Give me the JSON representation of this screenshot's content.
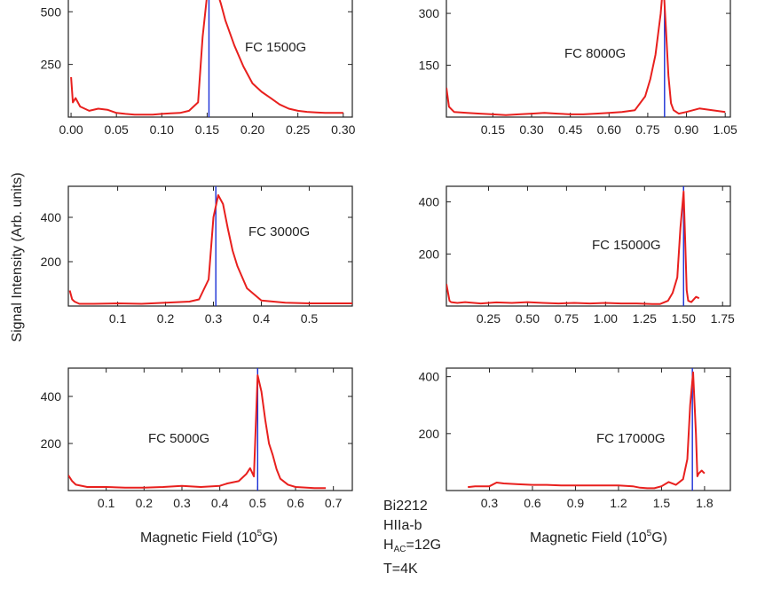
{
  "figure": {
    "ylabel": "Signal Intensity (Arb. units)",
    "xlabel_prefix": "Magnetic Field (10",
    "xlabel_sup": "5",
    "xlabel_suffix": "G)",
    "series_color": "#e8201e",
    "marker_color": "#1a2fd6"
  },
  "annotation": {
    "line1": "Bi2212",
    "line2": "HIIa-b",
    "line3_main": "H",
    "line3_sub": "AC",
    "line3_rest": "=12G",
    "line4": "T=4K"
  },
  "chart_data": [
    {
      "type": "line",
      "label": "FC 1500G",
      "xlim": [
        -0.003,
        0.31
      ],
      "ylim": [
        0,
        640
      ],
      "xticks": [
        "0.00",
        "0.05",
        "0.10",
        "0.15",
        "0.20",
        "0.25",
        "0.30"
      ],
      "yticks": [
        "250",
        "500"
      ],
      "marker_x": 0.152,
      "series": [
        {
          "x": [
            0.0,
            0.002,
            0.005,
            0.01,
            0.02,
            0.03,
            0.04,
            0.05,
            0.06,
            0.07,
            0.08,
            0.09,
            0.1,
            0.11,
            0.12,
            0.13,
            0.14,
            0.145,
            0.15,
            0.155,
            0.16,
            0.165,
            0.17,
            0.18,
            0.19,
            0.2,
            0.21,
            0.22,
            0.23,
            0.24,
            0.25,
            0.26,
            0.27,
            0.28,
            0.29,
            0.3
          ],
          "y": [
            190,
            70,
            90,
            50,
            30,
            40,
            35,
            20,
            15,
            12,
            12,
            12,
            15,
            18,
            20,
            30,
            70,
            380,
            580,
            590,
            610,
            540,
            460,
            340,
            240,
            160,
            120,
            90,
            60,
            40,
            30,
            25,
            22,
            20,
            20,
            20
          ]
        }
      ]
    },
    {
      "type": "line",
      "label": "FC 8000G",
      "xlim": [
        -0.03,
        1.07
      ],
      "ylim": [
        0,
        390
      ],
      "xticks": [
        "0.15",
        "0.30",
        "0.45",
        "0.60",
        "0.75",
        "0.90",
        "1.05"
      ],
      "yticks": [
        "150",
        "300"
      ],
      "marker_x": 0.815,
      "series": [
        {
          "x": [
            -0.03,
            -0.02,
            0.0,
            0.05,
            0.1,
            0.15,
            0.2,
            0.25,
            0.3,
            0.35,
            0.4,
            0.45,
            0.5,
            0.55,
            0.6,
            0.65,
            0.7,
            0.74,
            0.76,
            0.78,
            0.8,
            0.81,
            0.82,
            0.83,
            0.84,
            0.85,
            0.87,
            0.9,
            0.95,
            1.0,
            1.05
          ],
          "y": [
            85,
            30,
            15,
            12,
            10,
            8,
            6,
            8,
            10,
            12,
            10,
            8,
            8,
            10,
            12,
            15,
            20,
            60,
            110,
            180,
            300,
            390,
            260,
            120,
            40,
            20,
            10,
            15,
            25,
            20,
            15
          ]
        }
      ]
    },
    {
      "type": "line",
      "label": "FC 3000G",
      "xlim": [
        -0.003,
        0.59
      ],
      "ylim": [
        0,
        540
      ],
      "xticks": [
        "0.1",
        "0.2",
        "0.3",
        "0.4",
        "0.5"
      ],
      "yticks": [
        "200",
        "400"
      ],
      "marker_x": 0.305,
      "series": [
        {
          "x": [
            0.0,
            0.005,
            0.01,
            0.02,
            0.05,
            0.1,
            0.15,
            0.2,
            0.25,
            0.27,
            0.29,
            0.3,
            0.31,
            0.32,
            0.33,
            0.34,
            0.35,
            0.37,
            0.4,
            0.45,
            0.5,
            0.55,
            0.59
          ],
          "y": [
            70,
            30,
            20,
            10,
            10,
            12,
            10,
            15,
            20,
            30,
            120,
            400,
            500,
            460,
            350,
            250,
            180,
            80,
            25,
            15,
            12,
            12,
            12
          ]
        }
      ]
    },
    {
      "type": "line",
      "label": "FC 15000G",
      "xlim": [
        -0.02,
        1.8
      ],
      "ylim": [
        0,
        460
      ],
      "xticks": [
        "0.25",
        "0.50",
        "0.75",
        "1.00",
        "1.25",
        "1.50",
        "1.75"
      ],
      "yticks": [
        "200",
        "400"
      ],
      "marker_x": 1.5,
      "series": [
        {
          "x": [
            -0.02,
            0.0,
            0.01,
            0.05,
            0.1,
            0.2,
            0.3,
            0.4,
            0.5,
            0.6,
            0.7,
            0.8,
            0.9,
            1.0,
            1.1,
            1.2,
            1.3,
            1.35,
            1.4,
            1.43,
            1.46,
            1.48,
            1.5,
            1.51,
            1.52,
            1.53,
            1.55,
            1.58,
            1.6
          ],
          "y": [
            85,
            20,
            15,
            12,
            15,
            10,
            14,
            12,
            15,
            12,
            10,
            12,
            10,
            12,
            10,
            10,
            8,
            8,
            20,
            50,
            110,
            300,
            440,
            260,
            60,
            20,
            15,
            35,
            30
          ]
        }
      ]
    },
    {
      "type": "line",
      "label": "FC 5000G",
      "xlim": [
        0.0,
        0.75
      ],
      "ylim": [
        0,
        520
      ],
      "xticks": [
        "0.1",
        "0.2",
        "0.3",
        "0.4",
        "0.5",
        "0.6",
        "0.7"
      ],
      "yticks": [
        "200",
        "400"
      ],
      "marker_x": 0.5,
      "series": [
        {
          "x": [
            0.0,
            0.01,
            0.02,
            0.05,
            0.1,
            0.15,
            0.2,
            0.25,
            0.3,
            0.35,
            0.4,
            0.42,
            0.45,
            0.47,
            0.48,
            0.49,
            0.5,
            0.51,
            0.52,
            0.53,
            0.54,
            0.55,
            0.56,
            0.58,
            0.6,
            0.65,
            0.68
          ],
          "y": [
            65,
            40,
            25,
            15,
            15,
            12,
            12,
            15,
            20,
            15,
            20,
            30,
            40,
            70,
            95,
            60,
            490,
            420,
            300,
            200,
            150,
            90,
            50,
            25,
            15,
            10,
            10
          ]
        }
      ]
    },
    {
      "type": "line",
      "label": "FC 17000G",
      "xlim": [
        0.0,
        1.98
      ],
      "ylim": [
        0,
        430
      ],
      "xticks": [
        "0.3",
        "0.6",
        "0.9",
        "1.2",
        "1.5",
        "1.8"
      ],
      "yticks": [
        "200",
        "400"
      ],
      "marker_x": 1.715,
      "series": [
        {
          "x": [
            0.15,
            0.2,
            0.25,
            0.3,
            0.35,
            0.4,
            0.5,
            0.6,
            0.7,
            0.8,
            0.9,
            1.0,
            1.1,
            1.2,
            1.3,
            1.35,
            1.4,
            1.45,
            1.5,
            1.55,
            1.6,
            1.65,
            1.68,
            1.7,
            1.72,
            1.74,
            1.75,
            1.76,
            1.78,
            1.8
          ],
          "y": [
            12,
            15,
            15,
            15,
            28,
            25,
            22,
            20,
            20,
            18,
            18,
            18,
            18,
            18,
            15,
            10,
            8,
            8,
            15,
            30,
            20,
            40,
            110,
            300,
            415,
            200,
            50,
            60,
            70,
            60
          ]
        }
      ]
    }
  ]
}
